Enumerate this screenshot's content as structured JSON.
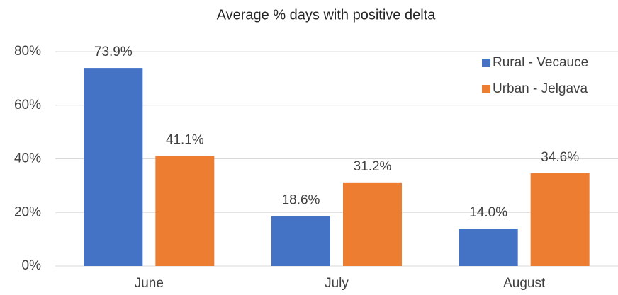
{
  "chart_data": {
    "type": "bar",
    "title": "Average % days with positive delta",
    "categories": [
      "June",
      "July",
      "August"
    ],
    "series": [
      {
        "name": "Rural - Vecauce",
        "color": "#4472c4",
        "values": [
          73.9,
          18.6,
          14.0
        ],
        "value_labels": [
          "73.9%",
          "18.6%",
          "14.0%"
        ]
      },
      {
        "name": "Urban - Jelgava",
        "color": "#ed7d31",
        "values": [
          41.1,
          31.2,
          34.6
        ],
        "value_labels": [
          "41.1%",
          "31.2%",
          "34.6%"
        ]
      }
    ],
    "ylim": [
      0,
      80
    ],
    "yticks": [
      {
        "value": 0,
        "label": "0%"
      },
      {
        "value": 20,
        "label": "20%"
      },
      {
        "value": 40,
        "label": "40%"
      },
      {
        "value": 60,
        "label": "60%"
      },
      {
        "value": 80,
        "label": "80%"
      }
    ],
    "grid": true,
    "legend": "upper right"
  }
}
